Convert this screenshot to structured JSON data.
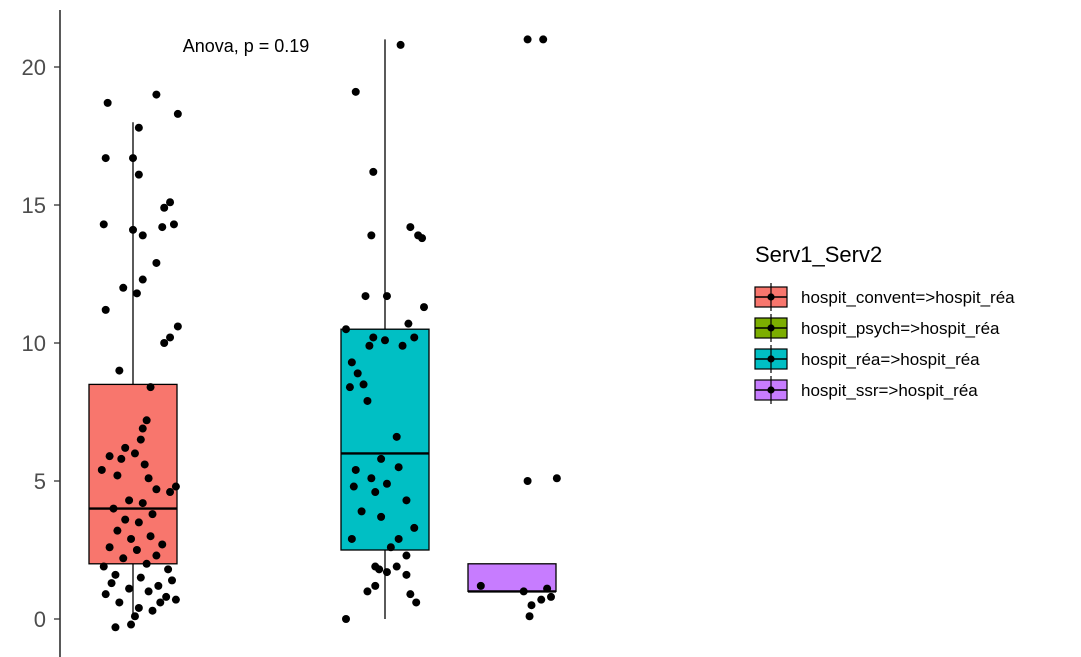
{
  "chart_data": {
    "type": "box",
    "title": "",
    "xlabel": "",
    "ylabel": "",
    "annotation": "Anova, p = 0.19",
    "y_ticks": [
      0,
      5,
      10,
      15,
      20
    ],
    "ylim": [
      -0.6,
      22
    ],
    "legend_title": "Serv1_Serv2",
    "legend_position": "right",
    "x_tick_labels_shown": false,
    "groups": [
      {
        "name": "hospit_convent=>hospit_réa",
        "color": "#F8766D",
        "in_plot": true,
        "box": {
          "whisker_low": 0,
          "q1": 2,
          "median": 4,
          "q3": 8.5,
          "whisker_high": 18
        },
        "points": [
          {
            "x": -0.13,
            "y": 18.7
          },
          {
            "x": 0.12,
            "y": 19.0
          },
          {
            "x": 0.23,
            "y": 18.3
          },
          {
            "x": 0.03,
            "y": 17.8
          },
          {
            "x": -0.14,
            "y": 16.7
          },
          {
            "x": 0.0,
            "y": 16.7
          },
          {
            "x": 0.03,
            "y": 16.1
          },
          {
            "x": 0.19,
            "y": 15.1
          },
          {
            "x": 0.16,
            "y": 14.9
          },
          {
            "x": 0.21,
            "y": 14.3
          },
          {
            "x": -0.15,
            "y": 14.3
          },
          {
            "x": 0.0,
            "y": 14.1
          },
          {
            "x": 0.15,
            "y": 14.2
          },
          {
            "x": 0.05,
            "y": 13.9
          },
          {
            "x": 0.12,
            "y": 12.9
          },
          {
            "x": 0.05,
            "y": 12.3
          },
          {
            "x": -0.05,
            "y": 12.0
          },
          {
            "x": 0.02,
            "y": 11.8
          },
          {
            "x": -0.14,
            "y": 11.2
          },
          {
            "x": 0.23,
            "y": 10.6
          },
          {
            "x": 0.19,
            "y": 10.2
          },
          {
            "x": 0.16,
            "y": 10.0
          },
          {
            "x": -0.07,
            "y": 9.0
          },
          {
            "x": 0.09,
            "y": 8.4
          },
          {
            "x": 0.07,
            "y": 7.2
          },
          {
            "x": 0.05,
            "y": 6.9
          },
          {
            "x": 0.04,
            "y": 6.5
          },
          {
            "x": -0.04,
            "y": 6.2
          },
          {
            "x": 0.01,
            "y": 6.0
          },
          {
            "x": -0.12,
            "y": 5.9
          },
          {
            "x": -0.06,
            "y": 5.8
          },
          {
            "x": 0.06,
            "y": 5.6
          },
          {
            "x": -0.16,
            "y": 5.4
          },
          {
            "x": -0.08,
            "y": 5.2
          },
          {
            "x": 0.08,
            "y": 5.1
          },
          {
            "x": 0.22,
            "y": 4.8
          },
          {
            "x": 0.19,
            "y": 4.6
          },
          {
            "x": 0.12,
            "y": 4.7
          },
          {
            "x": -0.02,
            "y": 4.3
          },
          {
            "x": 0.05,
            "y": 4.2
          },
          {
            "x": -0.1,
            "y": 4.0
          },
          {
            "x": 0.1,
            "y": 3.8
          },
          {
            "x": -0.04,
            "y": 3.6
          },
          {
            "x": 0.03,
            "y": 3.5
          },
          {
            "x": -0.08,
            "y": 3.2
          },
          {
            "x": 0.09,
            "y": 3.0
          },
          {
            "x": -0.01,
            "y": 2.9
          },
          {
            "x": 0.15,
            "y": 2.7
          },
          {
            "x": -0.12,
            "y": 2.6
          },
          {
            "x": 0.02,
            "y": 2.5
          },
          {
            "x": 0.12,
            "y": 2.3
          },
          {
            "x": -0.05,
            "y": 2.2
          },
          {
            "x": 0.07,
            "y": 2.0
          },
          {
            "x": -0.15,
            "y": 1.9
          },
          {
            "x": 0.18,
            "y": 1.8
          },
          {
            "x": -0.09,
            "y": 1.6
          },
          {
            "x": 0.04,
            "y": 1.5
          },
          {
            "x": 0.2,
            "y": 1.4
          },
          {
            "x": -0.11,
            "y": 1.3
          },
          {
            "x": 0.13,
            "y": 1.2
          },
          {
            "x": -0.02,
            "y": 1.1
          },
          {
            "x": 0.08,
            "y": 1.0
          },
          {
            "x": -0.14,
            "y": 0.9
          },
          {
            "x": 0.17,
            "y": 0.8
          },
          {
            "x": 0.22,
            "y": 0.7
          },
          {
            "x": 0.14,
            "y": 0.6
          },
          {
            "x": -0.07,
            "y": 0.6
          },
          {
            "x": 0.03,
            "y": 0.4
          },
          {
            "x": 0.1,
            "y": 0.3
          },
          {
            "x": 0.01,
            "y": 0.1
          },
          {
            "x": -0.09,
            "y": -0.3
          },
          {
            "x": -0.01,
            "y": -0.2
          }
        ]
      },
      {
        "name": "hospit_psych=>hospit_réa",
        "color": "#7CAE00",
        "in_plot": false,
        "points": []
      },
      {
        "name": "hospit_réa=>hospit_réa",
        "color": "#00BFC4",
        "in_plot": true,
        "box": {
          "whisker_low": 0,
          "q1": 2.5,
          "median": 6,
          "q3": 10.5,
          "whisker_high": 21
        },
        "points": [
          {
            "x": 0.08,
            "y": 20.8
          },
          {
            "x": -0.15,
            "y": 19.1
          },
          {
            "x": -0.06,
            "y": 16.2
          },
          {
            "x": 0.13,
            "y": 14.2
          },
          {
            "x": 0.19,
            "y": 13.8
          },
          {
            "x": -0.07,
            "y": 13.9
          },
          {
            "x": 0.17,
            "y": 13.9
          },
          {
            "x": -0.1,
            "y": 11.7
          },
          {
            "x": 0.01,
            "y": 11.7
          },
          {
            "x": 0.2,
            "y": 11.3
          },
          {
            "x": 0.12,
            "y": 10.7
          },
          {
            "x": -0.2,
            "y": 10.5
          },
          {
            "x": -0.06,
            "y": 10.2
          },
          {
            "x": 0.0,
            "y": 10.1
          },
          {
            "x": 0.15,
            "y": 10.2
          },
          {
            "x": 0.09,
            "y": 9.9
          },
          {
            "x": -0.08,
            "y": 9.9
          },
          {
            "x": -0.17,
            "y": 9.3
          },
          {
            "x": -0.14,
            "y": 8.9
          },
          {
            "x": -0.11,
            "y": 8.5
          },
          {
            "x": -0.18,
            "y": 8.4
          },
          {
            "x": -0.09,
            "y": 7.9
          },
          {
            "x": 0.06,
            "y": 6.6
          },
          {
            "x": -0.02,
            "y": 5.8
          },
          {
            "x": -0.15,
            "y": 5.4
          },
          {
            "x": 0.07,
            "y": 5.5
          },
          {
            "x": -0.07,
            "y": 5.1
          },
          {
            "x": -0.16,
            "y": 4.8
          },
          {
            "x": 0.01,
            "y": 4.9
          },
          {
            "x": -0.05,
            "y": 4.6
          },
          {
            "x": 0.11,
            "y": 4.3
          },
          {
            "x": -0.12,
            "y": 3.9
          },
          {
            "x": -0.02,
            "y": 3.7
          },
          {
            "x": 0.15,
            "y": 3.3
          },
          {
            "x": -0.17,
            "y": 2.9
          },
          {
            "x": 0.07,
            "y": 2.9
          },
          {
            "x": 0.03,
            "y": 2.6
          },
          {
            "x": 0.11,
            "y": 2.3
          },
          {
            "x": -0.05,
            "y": 1.9
          },
          {
            "x": -0.03,
            "y": 1.8
          },
          {
            "x": 0.01,
            "y": 1.7
          },
          {
            "x": 0.06,
            "y": 1.9
          },
          {
            "x": 0.11,
            "y": 1.6
          },
          {
            "x": -0.05,
            "y": 1.2
          },
          {
            "x": -0.09,
            "y": 1.0
          },
          {
            "x": 0.13,
            "y": 0.9
          },
          {
            "x": 0.16,
            "y": 0.6
          },
          {
            "x": -0.2,
            "y": 0.0
          }
        ]
      },
      {
        "name": "hospit_ssr=>hospit_réa",
        "color": "#C77CFF",
        "in_plot": true,
        "box": {
          "whisker_low": 1,
          "q1": 1,
          "median": 1,
          "q3": 2,
          "whisker_high": 2
        },
        "points": [
          {
            "x": 0.08,
            "y": 21.0
          },
          {
            "x": 0.16,
            "y": 21.0
          },
          {
            "x": 0.08,
            "y": 5.0
          },
          {
            "x": 0.23,
            "y": 5.1
          },
          {
            "x": -0.16,
            "y": 1.2
          },
          {
            "x": 0.06,
            "y": 1.0
          },
          {
            "x": 0.18,
            "y": 1.1
          },
          {
            "x": 0.2,
            "y": 0.8
          },
          {
            "x": 0.15,
            "y": 0.7
          },
          {
            "x": 0.1,
            "y": 0.5
          },
          {
            "x": 0.09,
            "y": 0.1
          }
        ]
      }
    ]
  }
}
